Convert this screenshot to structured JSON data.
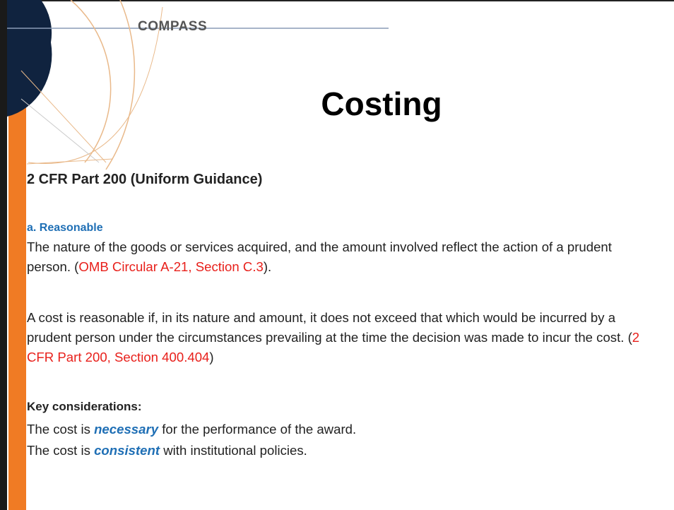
{
  "logo": "COMPASS",
  "title": "Costing",
  "heading": "2 CFR Part 200 (Uniform Guidance)",
  "subheading": "a.  Reasonable",
  "paragraphs": [
    [
      {
        "text": "The nature of the goods or services acquired, and the amount involved reflect the action of a prudent person.  ("
      },
      {
        "text": "OMB Circular A-21, Section C.3",
        "style": "ref"
      },
      {
        "text": ")."
      }
    ],
    [
      {
        "text": "A cost is reasonable if, in its nature and amount, it does not exceed that which would be incurred by a prudent person under the circumstances prevailing at the time the decision was made to incur the cost. ("
      },
      {
        "text": "2 CFR Part 200, Section 400.404",
        "style": "ref"
      },
      {
        "text": ")"
      }
    ]
  ],
  "considerations": {
    "heading": "Key considerations:",
    "items": [
      [
        {
          "text": "The cost is "
        },
        {
          "text": "necessary",
          "style": "key"
        },
        {
          "text": " for the performance of the award."
        }
      ],
      [
        {
          "text": "The cost is "
        },
        {
          "text": "consistent",
          "style": "key"
        },
        {
          "text": " with institutional policies."
        }
      ]
    ]
  }
}
